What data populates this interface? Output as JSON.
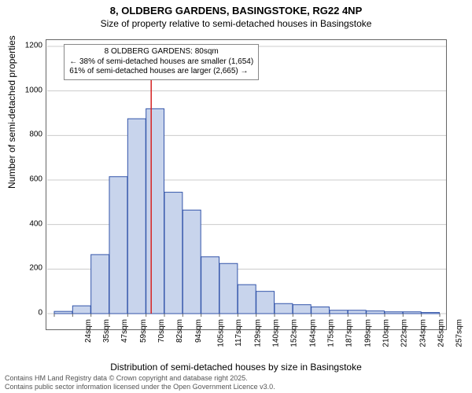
{
  "header": {
    "title": "8, OLDBERG GARDENS, BASINGSTOKE, RG22 4NP",
    "subtitle": "Size of property relative to semi-detached houses in Basingstoke"
  },
  "chart": {
    "type": "histogram",
    "xlabel": "Distribution of semi-detached houses by size in Basingstoke",
    "ylabel": "Number of semi-detached properties",
    "ylim": [
      0,
      1200
    ],
    "ytick_step": 200,
    "xticks": [
      "24sqm",
      "35sqm",
      "47sqm",
      "59sqm",
      "70sqm",
      "82sqm",
      "94sqm",
      "105sqm",
      "117sqm",
      "129sqm",
      "140sqm",
      "152sqm",
      "164sqm",
      "175sqm",
      "187sqm",
      "199sqm",
      "210sqm",
      "222sqm",
      "234sqm",
      "245sqm",
      "257sqm"
    ],
    "values": [
      10,
      35,
      265,
      615,
      875,
      920,
      545,
      465,
      255,
      225,
      130,
      100,
      45,
      40,
      30,
      15,
      15,
      12,
      8,
      8,
      5
    ],
    "bar_fill": "#c8d4ec",
    "bar_stroke": "#3355aa",
    "background_color": "#ffffff",
    "grid_color": "#cccccc",
    "axis_color": "#666666",
    "marker": {
      "position_index": 4.78,
      "color": "#d62222"
    },
    "info_box": {
      "line1": "8 OLDBERG GARDENS: 80sqm",
      "line2": "← 38% of semi-detached houses are smaller (1,654)",
      "line3": "61% of semi-detached houses are larger (2,665) →"
    }
  },
  "footer": {
    "line1": "Contains HM Land Registry data © Crown copyright and database right 2025.",
    "line2": "Contains public sector information licensed under the Open Government Licence v3.0."
  }
}
